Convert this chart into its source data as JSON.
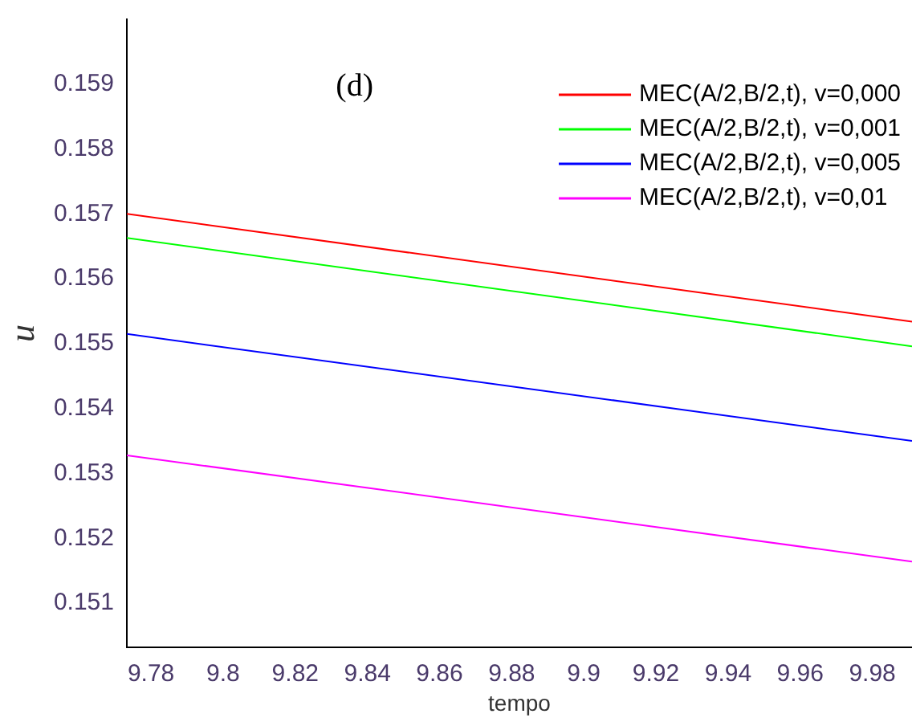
{
  "chart_data": {
    "type": "line",
    "xlabel": "tempo",
    "ylabel": "u",
    "annotations": [
      "(d)"
    ],
    "x": [
      9.7733,
      9.991
    ],
    "series": [
      {
        "name": "MEC(A/2,B/2,t), v=0,000",
        "color": "#ff0000",
        "values": [
          0.157,
          0.15534
        ]
      },
      {
        "name": "MEC(A/2,B/2,t), v=0,001",
        "color": "#00ff00",
        "values": [
          0.15663,
          0.15496
        ]
      },
      {
        "name": "MEC(A/2,B/2,t), v=0,005",
        "color": "#0000ff",
        "values": [
          0.15515,
          0.1535
        ]
      },
      {
        "name": "MEC(A/2,B/2,t), v=0,01",
        "color": "#ff00ff",
        "values": [
          0.15328,
          0.15164
        ]
      }
    ],
    "xlim": [
      9.7733,
      9.991
    ],
    "xticks": [
      9.78,
      9.8,
      9.82,
      9.84,
      9.86,
      9.88,
      9.9,
      9.92,
      9.94,
      9.96,
      9.98
    ],
    "ylim": [
      0.15032,
      0.16
    ],
    "yticks": [
      0.151,
      0.152,
      0.153,
      0.154,
      0.155,
      0.156,
      0.157,
      0.158,
      0.159
    ],
    "grid": false,
    "legend": "top right",
    "marker": "none",
    "line_style": "solid"
  }
}
